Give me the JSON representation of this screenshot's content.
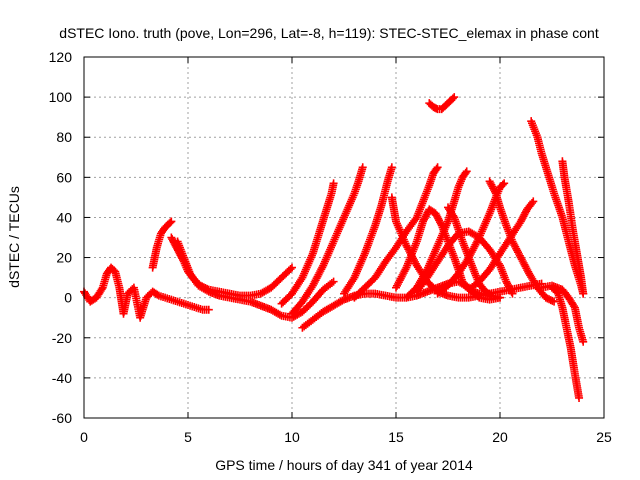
{
  "chart_data": {
    "type": "scatter",
    "title": "dSTEC Iono. truth (pove, Lon=296, Lat=-8, h=119): STEC-STEC_elemax in phase cont",
    "xlabel": "GPS time / hours of day 341 of year 2014",
    "ylabel": "dSTEC  / TECUs",
    "xlim": [
      0,
      25
    ],
    "ylim": [
      -60,
      120
    ],
    "xticks": [
      0,
      5,
      10,
      15,
      20,
      25
    ],
    "yticks": [
      -60,
      -40,
      -20,
      0,
      20,
      40,
      60,
      80,
      100,
      120
    ],
    "grid": true,
    "legend": "none",
    "marker": "plus",
    "color": "#ff0000",
    "series": [
      {
        "x": [
          0,
          0.3,
          0.6,
          0.9,
          1.1,
          1.3,
          1.5,
          1.7,
          1.9,
          2.1,
          2.4,
          2.7,
          3.0,
          3.3,
          3.6,
          3.9,
          4.2,
          4.5,
          4.8,
          5.1,
          5.4,
          5.7,
          6.0
        ],
        "y": [
          3,
          -2,
          0,
          5,
          12,
          15,
          13,
          5,
          -8,
          2,
          5,
          -10,
          0,
          3,
          1,
          0,
          -1,
          -2,
          -3,
          -4,
          -5,
          -6,
          -6
        ]
      },
      {
        "x": [
          3.3,
          3.5,
          3.7,
          3.9,
          4.1,
          4.2
        ],
        "y": [
          15,
          25,
          32,
          35,
          37,
          38
        ]
      },
      {
        "x": [
          4.2,
          4.4,
          4.6,
          4.8,
          5.0,
          5.3,
          5.6,
          6.0,
          6.5,
          7.0,
          7.5,
          8.0,
          8.5,
          9.0,
          9.5,
          10.0
        ],
        "y": [
          30,
          26,
          22,
          18,
          13,
          9,
          6,
          4,
          3,
          2,
          1,
          1,
          2,
          5,
          10,
          15
        ]
      },
      {
        "x": [
          4.5,
          4.8,
          5.1,
          5.5,
          6.0,
          6.5,
          7.0,
          7.5,
          8.0,
          8.5,
          9.0,
          9.5,
          10.0,
          10.5,
          11.0,
          11.5,
          12.0
        ],
        "y": [
          28,
          20,
          12,
          6,
          3,
          1,
          0,
          -1,
          -2,
          -4,
          -6,
          -9,
          -10,
          -7,
          -2,
          4,
          8
        ]
      },
      {
        "x": [
          10.5,
          11.0,
          11.5,
          12.0,
          12.5,
          13.0,
          13.5,
          14.0,
          14.5,
          15.0,
          15.5,
          16.0,
          16.5,
          17.0,
          17.5,
          18.0,
          18.5,
          19.0,
          19.5,
          20.0
        ],
        "y": [
          -15,
          -11,
          -7,
          -4,
          -1,
          1,
          2,
          2,
          1,
          0,
          0,
          1,
          3,
          5,
          7,
          8,
          5,
          0,
          -1,
          0
        ]
      },
      {
        "x": [
          9.5,
          10.0,
          10.5,
          11.0,
          11.3,
          11.6,
          11.9,
          12.0
        ],
        "y": [
          -3,
          2,
          10,
          22,
          32,
          42,
          52,
          57
        ]
      },
      {
        "x": [
          10.0,
          10.5,
          11.0,
          11.5,
          12.0,
          12.5,
          13.0,
          13.2,
          13.4
        ],
        "y": [
          -8,
          -2,
          6,
          16,
          28,
          40,
          52,
          58,
          65
        ]
      },
      {
        "x": [
          12.5,
          13.0,
          13.5,
          14.0,
          14.3,
          14.6,
          14.8
        ],
        "y": [
          2,
          10,
          22,
          36,
          46,
          58,
          65
        ]
      },
      {
        "x": [
          14.8,
          15.0,
          15.5,
          16.0,
          16.5,
          17.0,
          17.5,
          18.0,
          18.5,
          19.0,
          19.5,
          20.0,
          20.5,
          21.0,
          21.5,
          22.0
        ],
        "y": [
          50,
          38,
          26,
          16,
          8,
          3,
          1,
          0,
          0,
          1,
          2,
          3,
          4,
          5,
          6,
          7
        ]
      },
      {
        "x": [
          13.0,
          13.5,
          14.0,
          14.5,
          15.0,
          15.5,
          16.0,
          16.3,
          16.6,
          16.8,
          17.0
        ],
        "y": [
          0,
          5,
          10,
          18,
          25,
          33,
          40,
          48,
          56,
          62,
          65
        ]
      },
      {
        "x": [
          15.0,
          15.5,
          16.0,
          16.3,
          16.6,
          16.9,
          17.2,
          17.5,
          17.8,
          18.0,
          18.2,
          18.5,
          19.0,
          19.5,
          20.0
        ],
        "y": [
          5,
          15,
          28,
          38,
          44,
          42,
          36,
          28,
          20,
          14,
          8,
          4,
          2,
          1,
          0
        ]
      },
      {
        "x": [
          15.5,
          16.0,
          16.5,
          17.0,
          17.5,
          17.8,
          18.0,
          18.2,
          18.4
        ],
        "y": [
          0,
          5,
          14,
          26,
          38,
          48,
          55,
          60,
          63
        ]
      },
      {
        "x": [
          16.0,
          16.5,
          17.0,
          17.5,
          18.0,
          18.5,
          19.0,
          19.5,
          20.0,
          20.3,
          20.6
        ],
        "y": [
          3,
          10,
          18,
          26,
          32,
          33,
          30,
          24,
          16,
          8,
          2
        ]
      },
      {
        "x": [
          17.5,
          17.8,
          18.0,
          18.2,
          18.5,
          18.8,
          19.0,
          19.3,
          19.6
        ],
        "y": [
          45,
          40,
          34,
          28,
          20,
          12,
          7,
          3,
          1
        ]
      },
      {
        "x": [
          17.0,
          17.5,
          18.0,
          18.5,
          19.0,
          19.5,
          19.8,
          20.0,
          20.2
        ],
        "y": [
          2,
          6,
          12,
          20,
          30,
          42,
          50,
          55,
          57
        ]
      },
      {
        "x": [
          18.5,
          19.0,
          19.5,
          20.0,
          20.5,
          21.0,
          21.3,
          21.6
        ],
        "y": [
          4,
          8,
          14,
          22,
          30,
          38,
          44,
          48
        ]
      },
      {
        "x": [
          19.5,
          19.8,
          20.0,
          20.3,
          20.6,
          21.0,
          21.4,
          21.8,
          22.2,
          22.6
        ],
        "y": [
          58,
          52,
          45,
          36,
          28,
          20,
          12,
          5,
          0,
          -2
        ]
      },
      {
        "x": [
          21.5,
          21.8,
          22.0,
          22.3,
          22.6,
          23.0,
          23.3,
          23.6,
          23.9,
          24.0
        ],
        "y": [
          88,
          80,
          72,
          62,
          52,
          40,
          28,
          16,
          6,
          2
        ]
      },
      {
        "x": [
          23.0,
          23.1,
          23.3,
          23.5,
          23.7,
          23.9,
          24.0
        ],
        "y": [
          68,
          60,
          48,
          34,
          22,
          10,
          2
        ]
      },
      {
        "x": [
          22.0,
          22.5,
          23.0,
          23.3,
          23.6,
          23.8,
          24.0
        ],
        "y": [
          5,
          6,
          4,
          0,
          -5,
          -15,
          -22
        ]
      },
      {
        "x": [
          22.5,
          22.8,
          23.0,
          23.2,
          23.4,
          23.6,
          23.8
        ],
        "y": [
          5,
          2,
          -5,
          -15,
          -25,
          -38,
          -50
        ]
      },
      {
        "x": [
          16.6,
          16.8,
          17.0,
          17.2,
          17.4,
          17.6,
          17.8
        ],
        "y": [
          97,
          95,
          94,
          94,
          96,
          98,
          100
        ]
      }
    ]
  }
}
